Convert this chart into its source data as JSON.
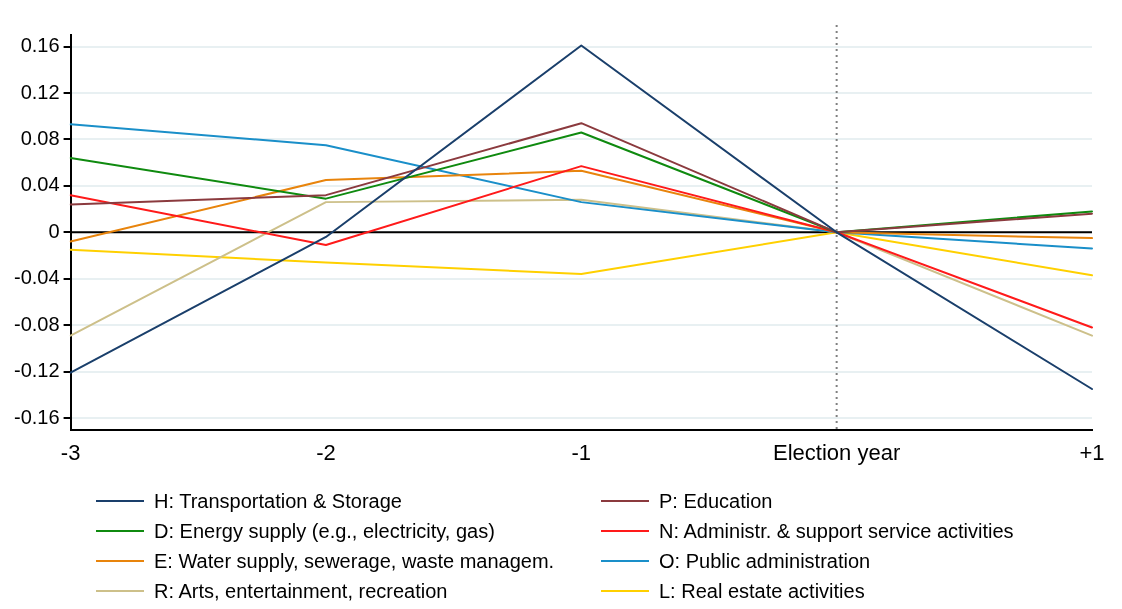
{
  "chart_data": {
    "type": "line",
    "categories": [
      "-3",
      "-2",
      "-1",
      "Election year",
      "+1"
    ],
    "series": [
      {
        "name": "H: Transportation & Storage",
        "color": "#1a3f6b",
        "values": [
          -0.121,
          -0.004,
          0.161,
          0,
          -0.135
        ]
      },
      {
        "name": "P: Education",
        "color": "#8b3a3e",
        "values": [
          0.024,
          0.032,
          0.094,
          0,
          0.016
        ]
      },
      {
        "name": "D: Energy supply (e.g., electricity, gas)",
        "color": "#0f8a0f",
        "values": [
          0.064,
          0.029,
          0.086,
          0,
          0.018
        ]
      },
      {
        "name": "N: Administr. & support service activities",
        "color": "#ff1a1a",
        "values": [
          0.032,
          -0.011,
          0.057,
          0,
          -0.082
        ]
      },
      {
        "name": "E: Water supply, sewerage, waste managem.",
        "color": "#e8840c",
        "values": [
          -0.008,
          0.045,
          0.053,
          0,
          -0.005
        ]
      },
      {
        "name": "O: Public administration",
        "color": "#1a8fc9",
        "values": [
          0.093,
          0.075,
          0.026,
          0,
          -0.014
        ]
      },
      {
        "name": "R: Arts, entertainment, recreation",
        "color": "#cdc08a",
        "values": [
          -0.089,
          0.026,
          0.028,
          0,
          -0.089
        ]
      },
      {
        "name": "L: Real estate activities",
        "color": "#ffd000",
        "values": [
          -0.015,
          -0.026,
          -0.036,
          0,
          -0.037
        ]
      }
    ],
    "ylim": [
      -0.17,
      0.17
    ],
    "yticks": [
      -0.16,
      -0.12,
      -0.08,
      -0.04,
      0,
      0.04,
      0.08,
      0.12,
      0.16
    ],
    "grid": "y",
    "legend": "bottom",
    "marker": "none",
    "line_style": "solid",
    "ref_lines": [
      {
        "axis": "y",
        "value": 0,
        "color": "#000000",
        "line_style": "solid"
      },
      {
        "axis": "x",
        "value": "Election year",
        "color": "#808080",
        "line_style": "dotted"
      }
    ]
  }
}
